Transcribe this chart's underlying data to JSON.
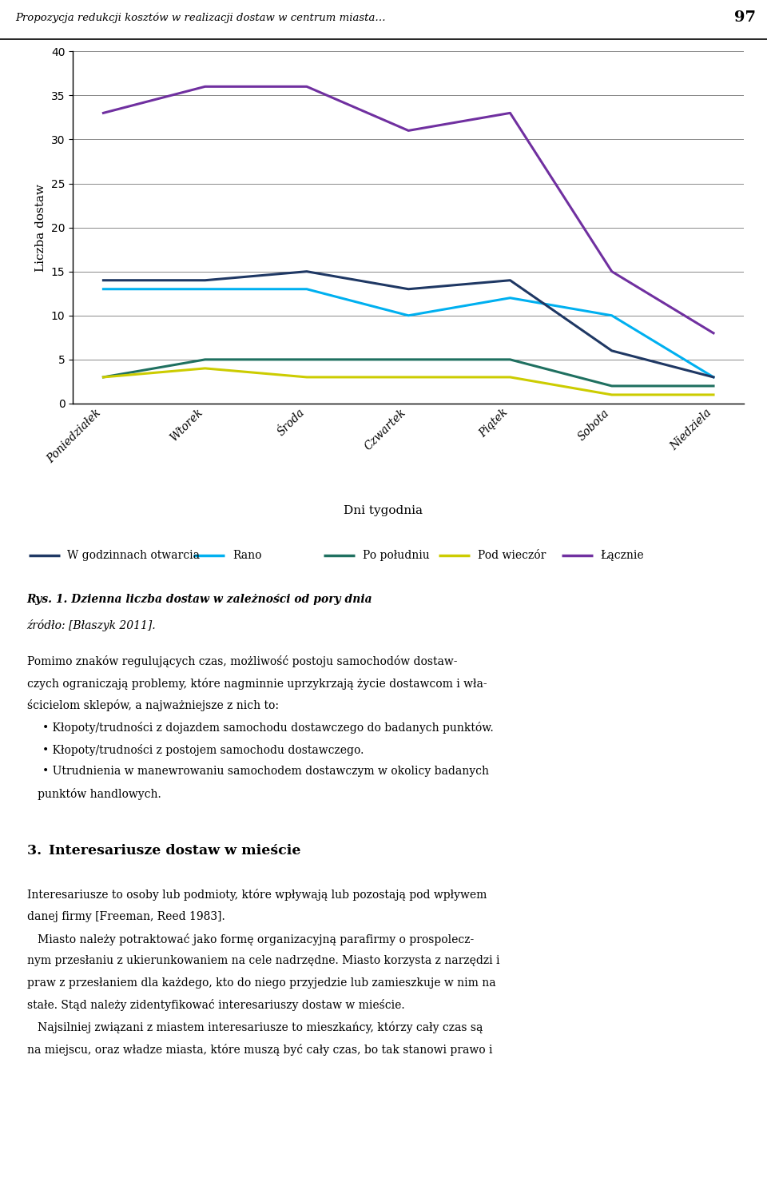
{
  "days": [
    "Poniedziałek",
    "Wtorek",
    "Środa",
    "Czwartek",
    "Piątek",
    "Sobota",
    "Niedziela"
  ],
  "series": [
    {
      "label": "W godzinnach otwarcia",
      "values": [
        14,
        14,
        15,
        13,
        14,
        6,
        3
      ],
      "color": "#1F3864",
      "linewidth": 2.2,
      "zorder": 4
    },
    {
      "label": "Rano",
      "values": [
        13,
        13,
        13,
        10,
        12,
        10,
        3
      ],
      "color": "#00B0F0",
      "linewidth": 2.2,
      "zorder": 3
    },
    {
      "label": "Po południu",
      "values": [
        3,
        5,
        5,
        5,
        5,
        2,
        2
      ],
      "color": "#1F7060",
      "linewidth": 2.2,
      "zorder": 3
    },
    {
      "label": "Pod wieczór",
      "values": [
        3,
        4,
        3,
        3,
        3,
        1,
        1
      ],
      "color": "#CCCC00",
      "linewidth": 2.2,
      "zorder": 3
    },
    {
      "label": "Łącznie",
      "values": [
        33,
        36,
        36,
        31,
        33,
        15,
        8
      ],
      "color": "#7030A0",
      "linewidth": 2.2,
      "zorder": 5
    }
  ],
  "ylabel": "Liczba dostaw",
  "xlabel": "Dni tygodnia",
  "ylim": [
    0,
    40
  ],
  "yticks": [
    0,
    5,
    10,
    15,
    20,
    25,
    30,
    35,
    40
  ],
  "title_text": "Propozycja redukcji kosztów w realizacji dostaw w centrum miasta…",
  "page_number": "97",
  "caption_line1": "Rys. 1. Dzienna liczba dostaw w zależności od pory dnia",
  "caption_line2": "źródło: [Błaszyk 2011].",
  "background_color": "#FFFFFF",
  "grid_color": "#888888",
  "legend_fontsize": 10,
  "axis_fontsize": 11,
  "tick_fontsize": 10,
  "body_lines": [
    "Pomimo znaków regulujących czas, możliwość postoju samochodów dostaw-",
    "czych ograniczają problemy, które nagminnie uprzykrzają życie dostawcom i wła-",
    "ścicielom sklepów, a najważniejsze z nich to:",
    "• Kłopoty/trudności z dojazdem samochodu dostawczego do badanych punktów.",
    "• Kłopoty/trudności z postojem samochodu dostawczego.",
    "• Utrudnienia w manewrowaniu samochodem dostawczym w okolicy badanych",
    "   punktów handlowych."
  ],
  "section_title": "3. Interesariusze dostaw w mieście",
  "section_lines": [
    "Interesariusze to osoby lub podmioty, które wpływają lub pozostają pod wpływem",
    "danej firmy [Freeman, Reed 1983].",
    "   Miasto należy potraktować jako formę organizacyjną parafirmy o prospolecz-",
    "nym przesłaniu z ukierunkowaniem na cele nadrzędne. Miasto korzysta z narzędzi i",
    "praw z przesłaniem dla każdego, kto do niego przyjedzie lub zamieszkuje w nim na",
    "stałe. Stąd należy zidentyfikować interesariuszy dostaw w mieście.",
    "   Najsilniej związani z miastem interesariusze to mieszkańcy, którzy cały czas są",
    "na miejscu, oraz władze miasta, które muszą być cały czas, bo tak stanowi prawo i"
  ]
}
